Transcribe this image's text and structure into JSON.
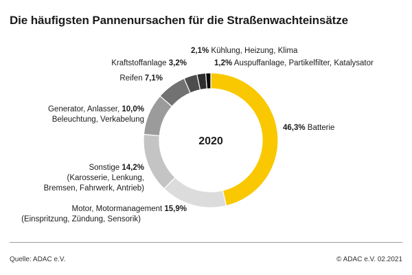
{
  "chart_data": {
    "type": "pie",
    "title": "Die häufigsten Pannenursachen für die Straßenwachteinsätze",
    "center_label": "2020",
    "unit": "%",
    "slices": [
      {
        "name": "Batterie",
        "value": 46.3,
        "value_label": "46,3%",
        "color": "#f9c800",
        "lines": [
          "Batterie"
        ]
      },
      {
        "name": "Motor, Motormanagement",
        "value": 15.9,
        "value_label": "15,9%",
        "color": "#dcdcdc",
        "lines": [
          "Motor, Motormanagement",
          "(Einspritzung, Zündung, Sensorik)"
        ]
      },
      {
        "name": "Sonstige",
        "value": 14.2,
        "value_label": "14,2%",
        "color": "#c4c4c4",
        "lines": [
          "Sonstige",
          "(Karosserie, Lenkung,",
          "Bremsen, Fahrwerk, Antrieb)"
        ]
      },
      {
        "name": "Generator, Anlasser",
        "value": 10.0,
        "value_label": "10,0%",
        "color": "#9b9b9b",
        "lines": [
          "Generator, Anlasser,",
          "Beleuchtung, Verkabelung"
        ]
      },
      {
        "name": "Reifen",
        "value": 7.1,
        "value_label": "7,1%",
        "color": "#727272",
        "lines": [
          "Reifen"
        ]
      },
      {
        "name": "Kraftstoffanlage",
        "value": 3.2,
        "value_label": "3,2%",
        "color": "#4d4d4d",
        "lines": [
          "Kraftstoffanlage"
        ]
      },
      {
        "name": "Kühlung, Heizung, Klima",
        "value": 2.1,
        "value_label": "2,1%",
        "color": "#2e2e2e",
        "lines": [
          "Kühlung, Heizung, Klima"
        ]
      },
      {
        "name": "Auspuffanlage, Partikelfilter, Katalysator",
        "value": 1.2,
        "value_label": "1,2%",
        "color": "#0a0a0a",
        "lines": [
          "Auspuffanlage, Partikelfilter, Katalysator"
        ]
      }
    ]
  },
  "footer": {
    "source": "Quelle: ADAC e.V.",
    "copyright": "© ADAC e.V. 02.2021"
  }
}
